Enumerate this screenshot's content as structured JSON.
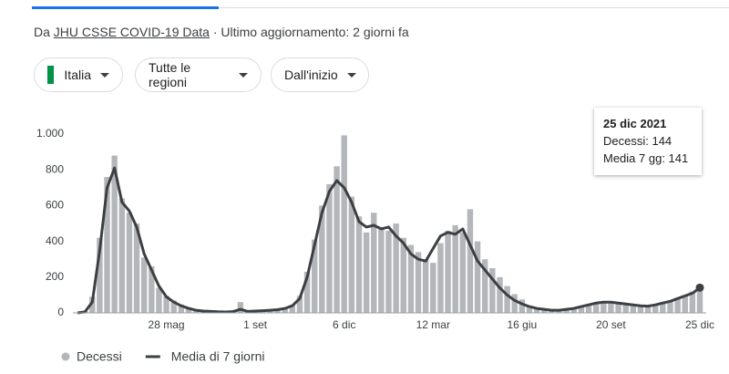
{
  "source": {
    "prefix": "Da",
    "link": "JHU CSSE COVID-19 Data",
    "updated": "· Ultimo aggiornamento: 2 giorni fa"
  },
  "filters": [
    "Italia",
    "Tutte le regioni",
    "Dall'inizio"
  ],
  "tooltip": {
    "date": "25 dic 2021",
    "lines": [
      "Decessi: 144",
      "Media 7 gg: 141"
    ]
  },
  "chart_data": {
    "type": "bar",
    "categories": [
      null,
      null,
      null,
      null,
      null,
      null,
      null,
      null,
      null,
      null,
      null,
      null,
      "28 mag",
      null,
      null,
      null,
      null,
      null,
      null,
      null,
      null,
      null,
      null,
      null,
      "1 set",
      null,
      null,
      null,
      null,
      null,
      null,
      null,
      null,
      null,
      null,
      null,
      "6 dic",
      null,
      null,
      null,
      null,
      null,
      null,
      null,
      null,
      null,
      null,
      null,
      "12 mar",
      null,
      null,
      null,
      null,
      null,
      null,
      null,
      null,
      null,
      null,
      null,
      "16 giu",
      null,
      null,
      null,
      null,
      null,
      null,
      null,
      null,
      null,
      null,
      null,
      "20 set",
      null,
      null,
      null,
      null,
      null,
      null,
      null,
      null,
      null,
      null,
      null,
      "25 dic"
    ],
    "series": [
      {
        "name": "Decessi",
        "type": "bar",
        "color": "#b3b6ba",
        "values": [
          0,
          10,
          90,
          420,
          760,
          880,
          640,
          560,
          500,
          310,
          260,
          140,
          95,
          70,
          45,
          30,
          18,
          12,
          9,
          7,
          5,
          6,
          60,
          10,
          12,
          13,
          16,
          20,
          28,
          45,
          95,
          230,
          410,
          600,
          720,
          820,
          993,
          650,
          540,
          450,
          560,
          480,
          460,
          500,
          420,
          380,
          340,
          300,
          280,
          390,
          460,
          490,
          450,
          580,
          400,
          300,
          250,
          200,
          150,
          105,
          75,
          40,
          30,
          22,
          17,
          15,
          22,
          28,
          38,
          48,
          58,
          65,
          63,
          58,
          52,
          48,
          42,
          40,
          48,
          60,
          70,
          85,
          100,
          120,
          144
        ]
      },
      {
        "name": "Media di 7 giorni",
        "type": "line",
        "color": "#3c4043",
        "values": [
          0,
          5,
          60,
          350,
          700,
          810,
          620,
          570,
          480,
          330,
          240,
          150,
          90,
          60,
          40,
          25,
          15,
          10,
          8,
          6,
          5,
          7,
          20,
          8,
          10,
          12,
          15,
          18,
          25,
          40,
          80,
          200,
          380,
          560,
          680,
          740,
          700,
          620,
          510,
          480,
          490,
          470,
          480,
          430,
          390,
          330,
          300,
          290,
          360,
          430,
          450,
          440,
          470,
          380,
          290,
          240,
          190,
          140,
          100,
          70,
          50,
          35,
          25,
          20,
          15,
          15,
          20,
          25,
          35,
          45,
          55,
          60,
          60,
          55,
          50,
          45,
          40,
          38,
          45,
          55,
          65,
          80,
          95,
          110,
          141
        ]
      }
    ],
    "ylim": [
      0,
      1000
    ],
    "yticks": [
      0,
      200,
      400,
      600,
      800,
      {
        "value": 1000,
        "label": "1.000"
      }
    ],
    "grid": false
  }
}
